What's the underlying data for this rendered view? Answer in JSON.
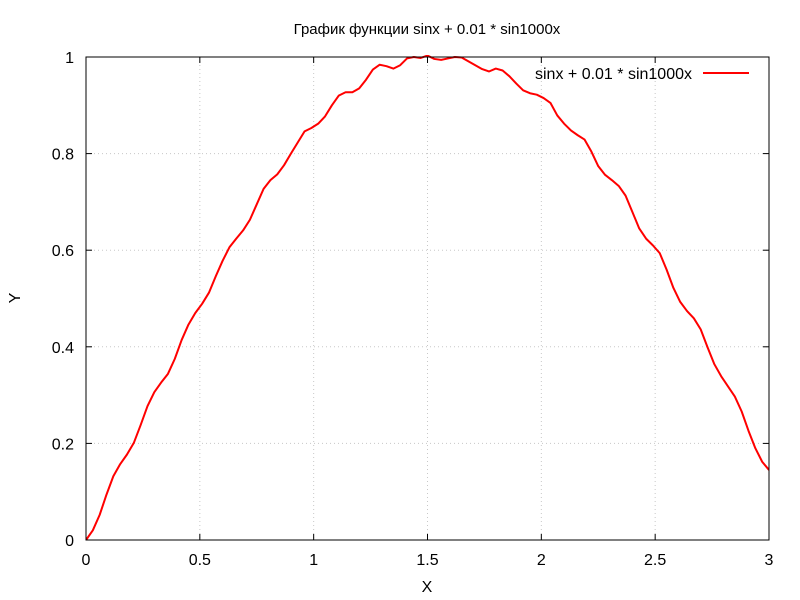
{
  "chart_data": {
    "type": "line",
    "title": "График функции sinx + 0.01 * sin1000x",
    "xlabel": "X",
    "ylabel": "Y",
    "xlim": [
      0,
      3
    ],
    "ylim": [
      0,
      1
    ],
    "x_ticks": [
      0,
      0.5,
      1,
      1.5,
      2,
      2.5,
      3
    ],
    "x_tick_labels": [
      "0",
      "0.5",
      "1",
      "1.5",
      "2",
      "2.5",
      "3"
    ],
    "y_ticks": [
      0,
      0.2,
      0.4,
      0.6,
      0.8,
      1
    ],
    "y_tick_labels": [
      "0",
      "0.2",
      "0.4",
      "0.6",
      "0.8",
      "1"
    ],
    "grid": true,
    "legend_position": "top-right",
    "series": [
      {
        "name": "sinx + 0.01 * sin1000x",
        "color": "#ff0000",
        "x": [
          0,
          0.03,
          0.06,
          0.09,
          0.12,
          0.15,
          0.18,
          0.21,
          0.24,
          0.27,
          0.3,
          0.33,
          0.36,
          0.39,
          0.42,
          0.45,
          0.48,
          0.51,
          0.54,
          0.57,
          0.6,
          0.63,
          0.66,
          0.69,
          0.72,
          0.75,
          0.78,
          0.81,
          0.84,
          0.87,
          0.9,
          0.93,
          0.96,
          0.99,
          1.02,
          1.05,
          1.08,
          1.11,
          1.14,
          1.17,
          1.2,
          1.23,
          1.26,
          1.29,
          1.32,
          1.35,
          1.38,
          1.41,
          1.44,
          1.47,
          1.5,
          1.53,
          1.56,
          1.59,
          1.62,
          1.65,
          1.68,
          1.71,
          1.74,
          1.77,
          1.8,
          1.83,
          1.86,
          1.89,
          1.92,
          1.95,
          1.98,
          2.01,
          2.04,
          2.07,
          2.1,
          2.13,
          2.16,
          2.19,
          2.22,
          2.25,
          2.28,
          2.31,
          2.34,
          2.37,
          2.4,
          2.43,
          2.46,
          2.49,
          2.52,
          2.55,
          2.58,
          2.61,
          2.64,
          2.67,
          2.7,
          2.73,
          2.76,
          2.79,
          2.82,
          2.85,
          2.88,
          2.91,
          2.94,
          2.97,
          3.0
        ],
        "y": [
          0,
          0.02,
          0.052,
          0.094,
          0.132,
          0.157,
          0.177,
          0.201,
          0.238,
          0.277,
          0.306,
          0.326,
          0.344,
          0.375,
          0.414,
          0.446,
          0.47,
          0.489,
          0.512,
          0.546,
          0.578,
          0.606,
          0.624,
          0.641,
          0.663,
          0.695,
          0.727,
          0.745,
          0.757,
          0.776,
          0.8,
          0.823,
          0.846,
          0.853,
          0.862,
          0.877,
          0.9,
          0.92,
          0.927,
          0.927,
          0.935,
          0.953,
          0.974,
          0.984,
          0.981,
          0.976,
          0.983,
          0.997,
          1.0,
          0.998,
          1.003,
          0.996,
          0.994,
          0.997,
          1.0,
          0.999,
          0.991,
          0.983,
          0.975,
          0.97,
          0.976,
          0.972,
          0.96,
          0.945,
          0.931,
          0.925,
          0.922,
          0.915,
          0.905,
          0.879,
          0.862,
          0.848,
          0.838,
          0.829,
          0.804,
          0.774,
          0.756,
          0.745,
          0.733,
          0.713,
          0.679,
          0.645,
          0.624,
          0.61,
          0.594,
          0.56,
          0.522,
          0.493,
          0.474,
          0.459,
          0.436,
          0.399,
          0.364,
          0.339,
          0.318,
          0.297,
          0.266,
          0.226,
          0.19,
          0.162,
          0.145
        ]
      }
    ]
  }
}
